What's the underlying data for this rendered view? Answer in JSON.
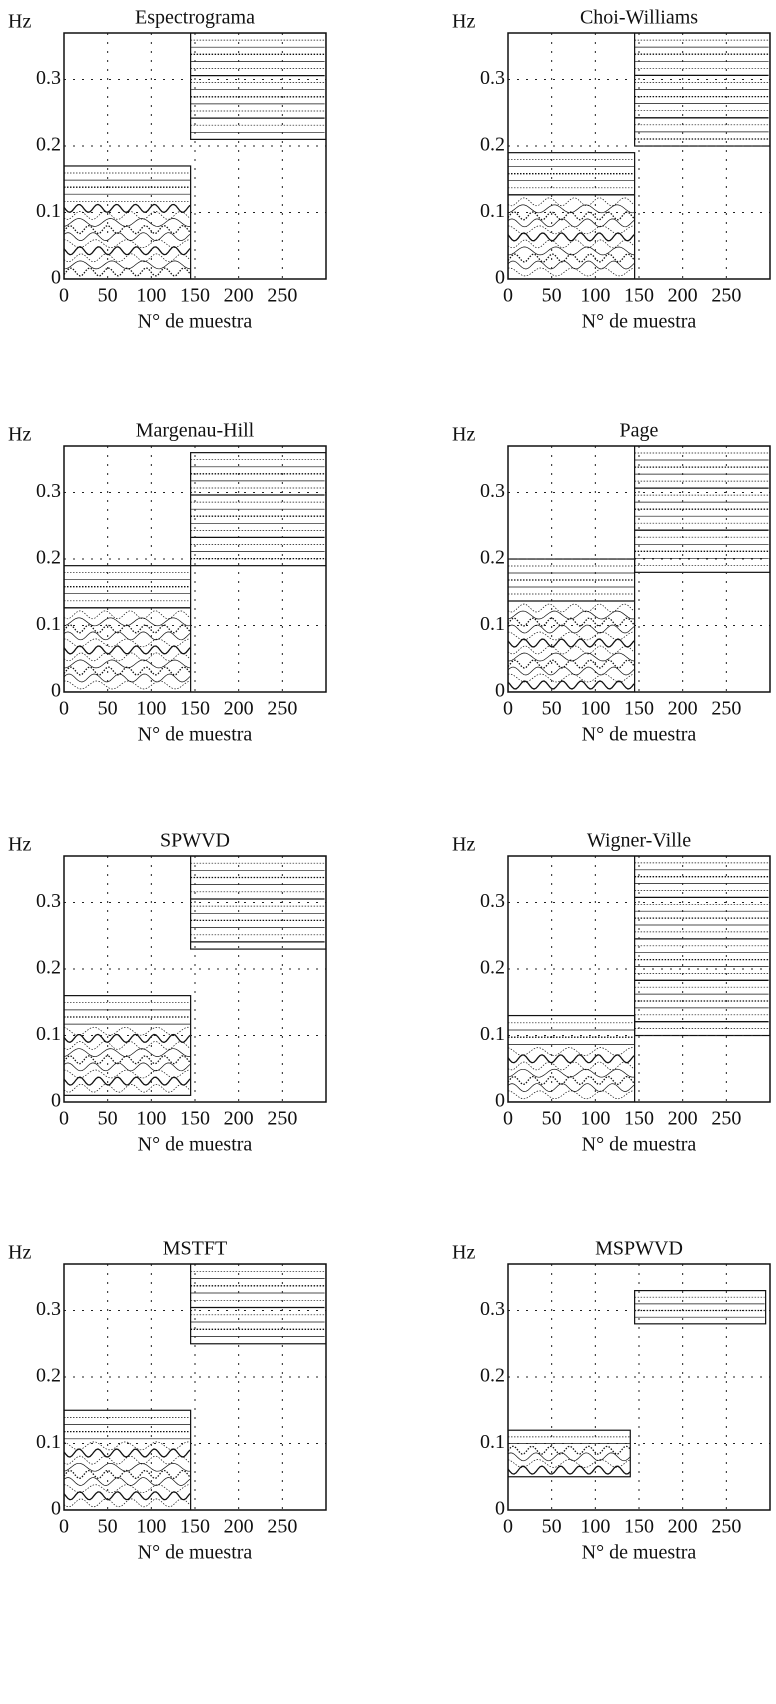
{
  "chart_data": [
    {
      "type": "contour",
      "title": "Espectrograma",
      "xlabel": "N° de muestra",
      "ylabel": "Hz",
      "color": "#111111",
      "grid": true,
      "xlim": [
        0,
        300
      ],
      "ylim": [
        0,
        0.37
      ],
      "xticks": [
        0,
        50,
        100,
        150,
        200,
        250
      ],
      "yticks": [
        0,
        0.1,
        0.2,
        0.3
      ],
      "bands": [
        {
          "x": [
            0,
            145
          ],
          "y": [
            0,
            0.17
          ]
        },
        {
          "x": [
            145,
            300
          ],
          "y": [
            0.21,
            0.37
          ]
        }
      ]
    },
    {
      "type": "contour",
      "title": "Choi-Williams",
      "xlabel": "N° de muestra",
      "ylabel": "Hz",
      "color": "#111111",
      "grid": true,
      "xlim": [
        0,
        300
      ],
      "ylim": [
        0,
        0.37
      ],
      "xticks": [
        0,
        50,
        100,
        150,
        200,
        250
      ],
      "yticks": [
        0,
        0.1,
        0.2,
        0.3
      ],
      "bands": [
        {
          "x": [
            0,
            145
          ],
          "y": [
            0,
            0.19
          ]
        },
        {
          "x": [
            145,
            300
          ],
          "y": [
            0.2,
            0.37
          ]
        }
      ]
    },
    {
      "type": "contour",
      "title": "Margenau-Hill",
      "xlabel": "N° de muestra",
      "ylabel": "Hz",
      "color": "#111111",
      "grid": true,
      "xlim": [
        0,
        300
      ],
      "ylim": [
        0,
        0.37
      ],
      "xticks": [
        0,
        50,
        100,
        150,
        200,
        250
      ],
      "yticks": [
        0,
        0.1,
        0.2,
        0.3
      ],
      "bands": [
        {
          "x": [
            0,
            145
          ],
          "y": [
            0,
            0.19
          ]
        },
        {
          "x": [
            145,
            300
          ],
          "y": [
            0.19,
            0.36
          ]
        }
      ]
    },
    {
      "type": "contour",
      "title": "Page",
      "xlabel": "N° de muestra",
      "ylabel": "Hz",
      "color": "#111111",
      "grid": true,
      "xlim": [
        0,
        300
      ],
      "ylim": [
        0,
        0.37
      ],
      "xticks": [
        0,
        50,
        100,
        150,
        200,
        250
      ],
      "yticks": [
        0,
        0.1,
        0.2,
        0.3
      ],
      "bands": [
        {
          "x": [
            0,
            145
          ],
          "y": [
            0,
            0.2
          ]
        },
        {
          "x": [
            145,
            300
          ],
          "y": [
            0.18,
            0.37
          ]
        }
      ]
    },
    {
      "type": "contour",
      "title": "SPWVD",
      "xlabel": "N° de muestra",
      "ylabel": "Hz",
      "color": "#111111",
      "grid": true,
      "xlim": [
        0,
        300
      ],
      "ylim": [
        0,
        0.37
      ],
      "xticks": [
        0,
        50,
        100,
        150,
        200,
        250
      ],
      "yticks": [
        0,
        0.1,
        0.2,
        0.3
      ],
      "bands": [
        {
          "x": [
            0,
            145
          ],
          "y": [
            0.01,
            0.16
          ]
        },
        {
          "x": [
            145,
            300
          ],
          "y": [
            0.23,
            0.37
          ]
        }
      ]
    },
    {
      "type": "contour",
      "title": "Wigner-Ville",
      "xlabel": "N° de muestra",
      "ylabel": "Hz",
      "color": "#111111",
      "grid": true,
      "xlim": [
        0,
        300
      ],
      "ylim": [
        0,
        0.37
      ],
      "xticks": [
        0,
        50,
        100,
        150,
        200,
        250
      ],
      "yticks": [
        0,
        0.1,
        0.2,
        0.3
      ],
      "bands": [
        {
          "x": [
            0,
            145
          ],
          "y": [
            0,
            0.13
          ]
        },
        {
          "x": [
            145,
            300
          ],
          "y": [
            0.1,
            0.37
          ]
        }
      ]
    },
    {
      "type": "contour",
      "title": "MSTFT",
      "xlabel": "N° de muestra",
      "ylabel": "Hz",
      "color": "#111111",
      "grid": true,
      "xlim": [
        0,
        300
      ],
      "ylim": [
        0,
        0.37
      ],
      "xticks": [
        0,
        50,
        100,
        150,
        200,
        250
      ],
      "yticks": [
        0,
        0.1,
        0.2,
        0.3
      ],
      "bands": [
        {
          "x": [
            0,
            145
          ],
          "y": [
            0,
            0.15
          ]
        },
        {
          "x": [
            145,
            300
          ],
          "y": [
            0.25,
            0.37
          ]
        }
      ]
    },
    {
      "type": "contour",
      "title": "MSPWVD",
      "xlabel": "N° de muestra",
      "ylabel": "Hz",
      "color": "#111111",
      "grid": true,
      "xlim": [
        0,
        300
      ],
      "ylim": [
        0,
        0.37
      ],
      "xticks": [
        0,
        50,
        100,
        150,
        200,
        250
      ],
      "yticks": [
        0,
        0.1,
        0.2,
        0.3
      ],
      "bands": [
        {
          "x": [
            0,
            140
          ],
          "y": [
            0.05,
            0.12
          ]
        },
        {
          "x": [
            145,
            295
          ],
          "y": [
            0.28,
            0.33
          ]
        }
      ]
    }
  ]
}
